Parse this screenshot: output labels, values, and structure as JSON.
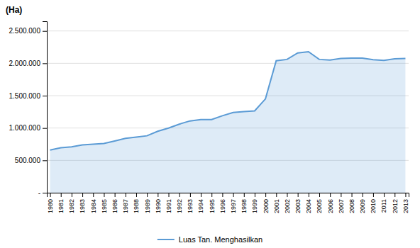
{
  "chart_data": {
    "type": "area",
    "ylabel": "(Ha)",
    "x": [
      1980,
      1981,
      1982,
      1983,
      1984,
      1985,
      1986,
      1987,
      1988,
      1989,
      1990,
      1991,
      1992,
      1993,
      1994,
      1995,
      1996,
      1997,
      1998,
      1999,
      2000,
      2001,
      2002,
      2003,
      2004,
      2005,
      2006,
      2007,
      2008,
      2009,
      2010,
      2011,
      2012,
      2013
    ],
    "series": [
      {
        "name": "Luas Tan. Menghasilkan",
        "color": "#5B9BD5",
        "values": [
          660000,
          695000,
          710000,
          740000,
          750000,
          760000,
          800000,
          840000,
          860000,
          880000,
          950000,
          1000000,
          1060000,
          1110000,
          1130000,
          1130000,
          1190000,
          1240000,
          1255000,
          1265000,
          1450000,
          2040000,
          2060000,
          2160000,
          2180000,
          2060000,
          2050000,
          2075000,
          2080000,
          2080000,
          2055000,
          2045000,
          2070000,
          2075000
        ]
      }
    ],
    "xlim": [
      1979.7,
      2013.3
    ],
    "xticks": [
      1980,
      1981,
      1982,
      1983,
      1984,
      1985,
      1986,
      1987,
      1988,
      1989,
      1990,
      1991,
      1992,
      1993,
      1994,
      1995,
      1996,
      1997,
      1998,
      1999,
      2000,
      2001,
      2002,
      2003,
      2004,
      2005,
      2006,
      2007,
      2008,
      2009,
      2010,
      2011,
      2012,
      2013
    ],
    "ylim": [
      0,
      2650000
    ],
    "yticks": [
      {
        "value": 0,
        "label": "-"
      },
      {
        "value": 500000,
        "label": "500.000"
      },
      {
        "value": 1000000,
        "label": "1.000.000"
      },
      {
        "value": 1500000,
        "label": "1.500.000"
      },
      {
        "value": 2000000,
        "label": "2.000.000"
      },
      {
        "value": 2500000,
        "label": "2.500.000"
      }
    ],
    "grid": true,
    "legend": "bottom"
  }
}
